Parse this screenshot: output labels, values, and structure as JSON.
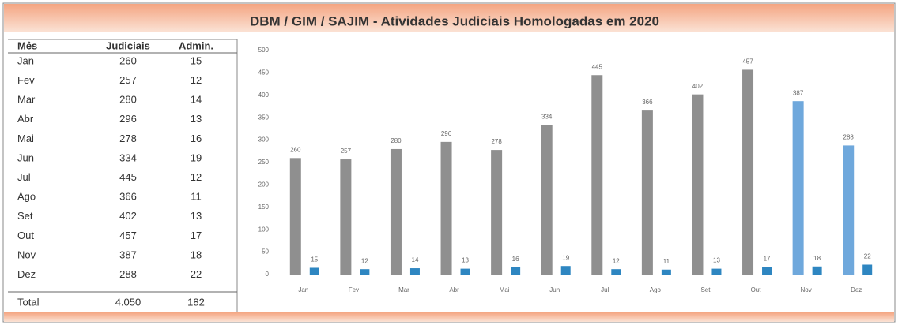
{
  "title": "DBM / GIM / SAJIM - Atividades Judiciais Homologadas em 2020",
  "table": {
    "header": [
      "Mês",
      "Judiciais",
      "Admin."
    ],
    "rows": [
      [
        "Jan",
        260,
        15
      ],
      [
        "Fev",
        257,
        12
      ],
      [
        "Mar",
        280,
        14
      ],
      [
        "Abr",
        296,
        13
      ],
      [
        "Mai",
        278,
        16
      ],
      [
        "Jun",
        334,
        19
      ],
      [
        "Jul",
        445,
        12
      ],
      [
        "Ago",
        366,
        11
      ],
      [
        "Set",
        402,
        13
      ],
      [
        "Out",
        457,
        17
      ],
      [
        "Nov",
        387,
        18
      ],
      [
        "Dez",
        288,
        22
      ]
    ],
    "total": [
      "Total",
      "4.050",
      182
    ]
  },
  "chart_data": {
    "type": "bar",
    "categories": [
      "Jan",
      "Fev",
      "Mar",
      "Abr",
      "Mai",
      "Jun",
      "Jul",
      "Ago",
      "Set",
      "Out",
      "Nov",
      "Dez"
    ],
    "series": [
      {
        "name": "Judiciais",
        "color": "#8f8f8f",
        "colors": [
          "#8f8f8f",
          "#8f8f8f",
          "#8f8f8f",
          "#8f8f8f",
          "#8f8f8f",
          "#8f8f8f",
          "#8f8f8f",
          "#8f8f8f",
          "#8f8f8f",
          "#8f8f8f",
          "#6fa8dc",
          "#6fa8dc"
        ],
        "values": [
          260,
          257,
          280,
          296,
          278,
          334,
          445,
          366,
          402,
          457,
          387,
          288
        ]
      },
      {
        "name": "Admin.",
        "color": "#2e86c1",
        "values": [
          15,
          12,
          14,
          13,
          16,
          19,
          12,
          11,
          13,
          17,
          18,
          22
        ]
      }
    ],
    "ylim": [
      0,
      500
    ],
    "yticks": [
      0,
      50,
      100,
      150,
      200,
      250,
      300,
      350,
      400,
      450,
      500
    ],
    "grid": false
  }
}
